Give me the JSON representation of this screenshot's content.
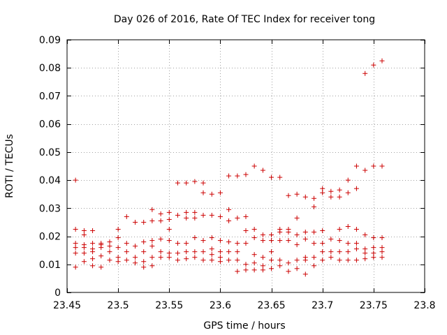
{
  "chart_data": {
    "type": "scatter",
    "title": "Day 026 of 2016, Rate Of TEC Index for receiver tong",
    "xlabel": "GPS time / hours",
    "ylabel": "ROTI / TECUs",
    "xlim": [
      23.45,
      23.8
    ],
    "ylim": [
      0,
      0.09
    ],
    "xticks": [
      "23.45",
      "23.5",
      "23.55",
      "23.6",
      "23.65",
      "23.7",
      "23.75",
      "23.8"
    ],
    "xtick_values": [
      23.45,
      23.5,
      23.55,
      23.6,
      23.65,
      23.7,
      23.75,
      23.8
    ],
    "yticks": [
      "0",
      "0.01",
      "0.02",
      "0.03",
      "0.04",
      "0.05",
      "0.06",
      "0.07",
      "0.08",
      "0.09"
    ],
    "ytick_values": [
      0,
      0.01,
      0.02,
      0.03,
      0.04,
      0.05,
      0.06,
      0.07,
      0.08,
      0.09
    ],
    "grid": true,
    "marker_color": "#cc0000",
    "series": [
      {
        "name": "ROTI",
        "x": [
          23.4583,
          23.4583,
          23.4583,
          23.4583,
          23.4583,
          23.4583,
          23.4667,
          23.4667,
          23.4667,
          23.4667,
          23.4667,
          23.4667,
          23.475,
          23.475,
          23.475,
          23.475,
          23.475,
          23.475,
          23.4833,
          23.4833,
          23.4833,
          23.4833,
          23.4833,
          23.4917,
          23.4917,
          23.4917,
          23.4917,
          23.5,
          23.5,
          23.5,
          23.5,
          23.5,
          23.5083,
          23.5083,
          23.5083,
          23.5083,
          23.5167,
          23.5167,
          23.5167,
          23.5167,
          23.525,
          23.525,
          23.525,
          23.525,
          23.525,
          23.5333,
          23.5333,
          23.5333,
          23.5333,
          23.5333,
          23.5333,
          23.5417,
          23.5417,
          23.5417,
          23.5417,
          23.5417,
          23.55,
          23.55,
          23.55,
          23.55,
          23.55,
          23.55,
          23.5583,
          23.5583,
          23.5583,
          23.5583,
          23.5583,
          23.5667,
          23.5667,
          23.5667,
          23.5667,
          23.5667,
          23.5667,
          23.575,
          23.575,
          23.575,
          23.575,
          23.575,
          23.575,
          23.5833,
          23.5833,
          23.5833,
          23.5833,
          23.5833,
          23.5833,
          23.5917,
          23.5917,
          23.5917,
          23.5917,
          23.5917,
          23.5917,
          23.6,
          23.6,
          23.6,
          23.6,
          23.6,
          23.6,
          23.6083,
          23.6083,
          23.6083,
          23.6083,
          23.6083,
          23.6083,
          23.6167,
          23.6167,
          23.6167,
          23.6167,
          23.6167,
          23.6167,
          23.625,
          23.625,
          23.625,
          23.625,
          23.625,
          23.625,
          23.6333,
          23.6333,
          23.6333,
          23.6333,
          23.6333,
          23.6333,
          23.6417,
          23.6417,
          23.6417,
          23.6417,
          23.6417,
          23.6417,
          23.65,
          23.65,
          23.65,
          23.65,
          23.65,
          23.65,
          23.6583,
          23.6583,
          23.6583,
          23.6583,
          23.6583,
          23.6583,
          23.6667,
          23.6667,
          23.6667,
          23.6667,
          23.6667,
          23.6667,
          23.675,
          23.675,
          23.675,
          23.675,
          23.675,
          23.675,
          23.6833,
          23.6833,
          23.6833,
          23.6833,
          23.6833,
          23.6833,
          23.6917,
          23.6917,
          23.6917,
          23.6917,
          23.6917,
          23.6917,
          23.7,
          23.7,
          23.7,
          23.7,
          23.7,
          23.7,
          23.7083,
          23.7083,
          23.7083,
          23.7083,
          23.7083,
          23.7167,
          23.7167,
          23.7167,
          23.7167,
          23.7167,
          23.7167,
          23.725,
          23.725,
          23.725,
          23.725,
          23.725,
          23.725,
          23.7333,
          23.7333,
          23.7333,
          23.7333,
          23.7333,
          23.7333,
          23.7417,
          23.7417,
          23.7417,
          23.7417,
          23.7417,
          23.7417,
          23.75,
          23.75,
          23.75,
          23.75,
          23.75,
          23.75,
          23.7583,
          23.7583,
          23.7583,
          23.7583,
          23.7583,
          23.7583
        ],
        "y": [
          0.04,
          0.0225,
          0.0175,
          0.016,
          0.014,
          0.009,
          0.022,
          0.0205,
          0.017,
          0.016,
          0.014,
          0.011,
          0.022,
          0.0175,
          0.0155,
          0.0145,
          0.012,
          0.0095,
          0.0175,
          0.017,
          0.016,
          0.013,
          0.009,
          0.018,
          0.0165,
          0.0145,
          0.0115,
          0.0225,
          0.0195,
          0.016,
          0.0125,
          0.011,
          0.027,
          0.0175,
          0.0145,
          0.0115,
          0.025,
          0.0165,
          0.0125,
          0.0105,
          0.025,
          0.018,
          0.0145,
          0.011,
          0.009,
          0.0295,
          0.0255,
          0.0185,
          0.0165,
          0.0125,
          0.0095,
          0.028,
          0.0255,
          0.019,
          0.0145,
          0.0125,
          0.0285,
          0.026,
          0.0225,
          0.0185,
          0.014,
          0.0125,
          0.039,
          0.0275,
          0.0175,
          0.014,
          0.0115,
          0.039,
          0.0285,
          0.0265,
          0.0175,
          0.0145,
          0.012,
          0.0395,
          0.0285,
          0.0265,
          0.0195,
          0.0145,
          0.0125,
          0.039,
          0.0355,
          0.0275,
          0.0185,
          0.0145,
          0.0115,
          0.035,
          0.0275,
          0.0195,
          0.0155,
          0.0135,
          0.0115,
          0.0355,
          0.027,
          0.0185,
          0.0145,
          0.0125,
          0.011,
          0.0415,
          0.0295,
          0.0255,
          0.018,
          0.0145,
          0.0115,
          0.0415,
          0.0265,
          0.0175,
          0.0145,
          0.0115,
          0.0075,
          0.042,
          0.027,
          0.022,
          0.0175,
          0.01,
          0.008,
          0.045,
          0.0225,
          0.0195,
          0.0135,
          0.0105,
          0.008,
          0.0435,
          0.0205,
          0.0185,
          0.0125,
          0.0095,
          0.008,
          0.041,
          0.0205,
          0.0185,
          0.0145,
          0.0115,
          0.0085,
          0.041,
          0.0225,
          0.0215,
          0.0185,
          0.0115,
          0.0095,
          0.0345,
          0.0225,
          0.0215,
          0.0185,
          0.0105,
          0.0075,
          0.035,
          0.0265,
          0.0205,
          0.017,
          0.0115,
          0.0085,
          0.034,
          0.0215,
          0.019,
          0.0125,
          0.0115,
          0.0065,
          0.0335,
          0.0305,
          0.0215,
          0.0175,
          0.0125,
          0.0095,
          0.037,
          0.0355,
          0.022,
          0.0175,
          0.0145,
          0.0115,
          0.036,
          0.034,
          0.019,
          0.0145,
          0.0125,
          0.0365,
          0.034,
          0.0225,
          0.0185,
          0.0145,
          0.0115,
          0.04,
          0.0355,
          0.0235,
          0.0175,
          0.0145,
          0.0115,
          0.045,
          0.037,
          0.0225,
          0.0175,
          0.0155,
          0.0115,
          0.078,
          0.0435,
          0.0205,
          0.0155,
          0.014,
          0.012,
          0.081,
          0.045,
          0.0195,
          0.016,
          0.014,
          0.0125,
          0.0825,
          0.045,
          0.0195,
          0.016,
          0.0145,
          0.0125
        ]
      }
    ]
  }
}
